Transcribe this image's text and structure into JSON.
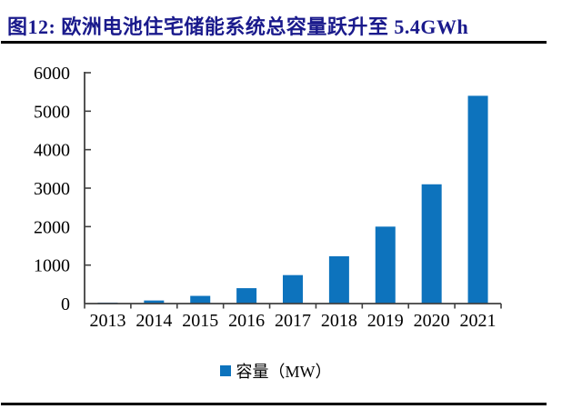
{
  "title": {
    "text": "图12:  欧洲电池住宅储能系统总容量跃升至 5.4GWh",
    "color": "#1a1a8c"
  },
  "legend": {
    "label": "容量（MW）"
  },
  "chart_data": {
    "type": "bar",
    "title": "图12:  欧洲电池住宅储能系统总容量跃升至 5.4GWh",
    "categories": [
      "2013",
      "2014",
      "2015",
      "2016",
      "2017",
      "2018",
      "2019",
      "2020",
      "2021"
    ],
    "values": [
      25,
      80,
      200,
      400,
      740,
      1230,
      2000,
      3100,
      5400
    ],
    "series_name": "容量（MW）",
    "xlabel": "",
    "ylabel": "",
    "ylim": [
      0,
      6000
    ],
    "yticks": [
      0,
      1000,
      2000,
      3000,
      4000,
      5000,
      6000
    ],
    "bar_color": "#0d73bd",
    "axis_color": "#404040",
    "grid": false,
    "legend_position": "bottom",
    "legend_entries": [
      "容量（MW）"
    ]
  }
}
